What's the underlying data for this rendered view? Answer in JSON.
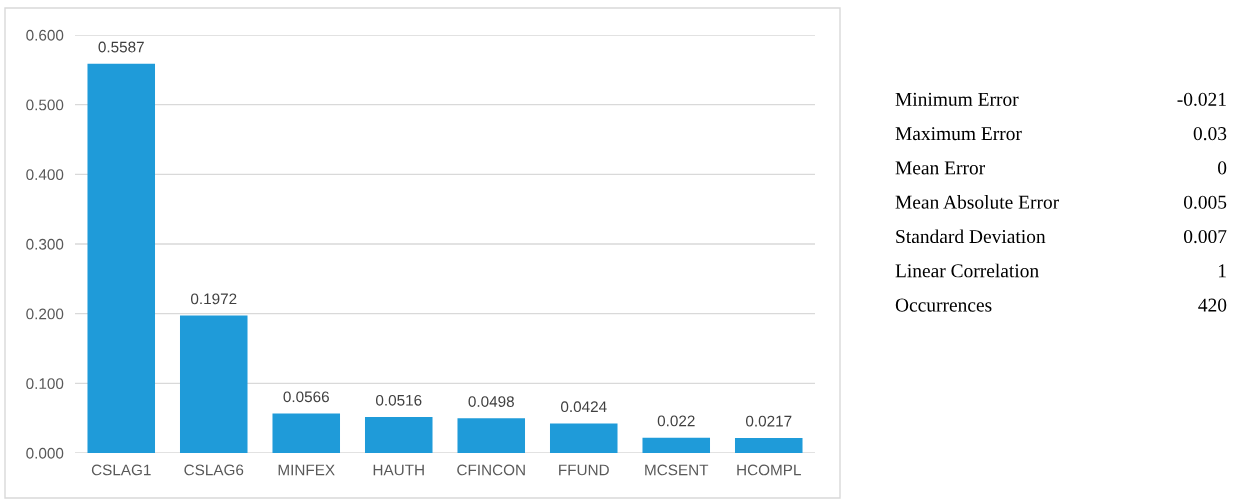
{
  "chart_data": [
    {
      "type": "bar",
      "categories": [
        "CSLAG1",
        "CSLAG6",
        "MINFEX",
        "HAUTH",
        "CFINCON",
        "FFUND",
        "MCSENT",
        "HCOMPL"
      ],
      "values": [
        0.5587,
        0.1972,
        0.0566,
        0.0516,
        0.0498,
        0.0424,
        0.022,
        0.0217
      ],
      "color": "#1f9bd9",
      "ylim": [
        0,
        0.6
      ],
      "yticks": [
        {
          "value": 0,
          "label": "0.000"
        },
        {
          "value": 0.1,
          "label": "0.100"
        },
        {
          "value": 0.2,
          "label": "0.200"
        },
        {
          "value": 0.3,
          "label": "0.300"
        },
        {
          "value": 0.4,
          "label": "0.400"
        },
        {
          "value": 0.5,
          "label": "0.500"
        },
        {
          "value": 0.6,
          "label": "0.600"
        }
      ],
      "grid": "y",
      "data_labels": true
    },
    {
      "type": "other",
      "categories": [
        "Minimum Error",
        "Maximum Error",
        "Mean Error",
        "Mean Absolute Error",
        "Standard Deviation",
        "Linear Correlation",
        "Occurrences"
      ],
      "values": [
        -0.021,
        0.03,
        0,
        0.005,
        0.007,
        1,
        420
      ],
      "data_labels": true
    }
  ]
}
